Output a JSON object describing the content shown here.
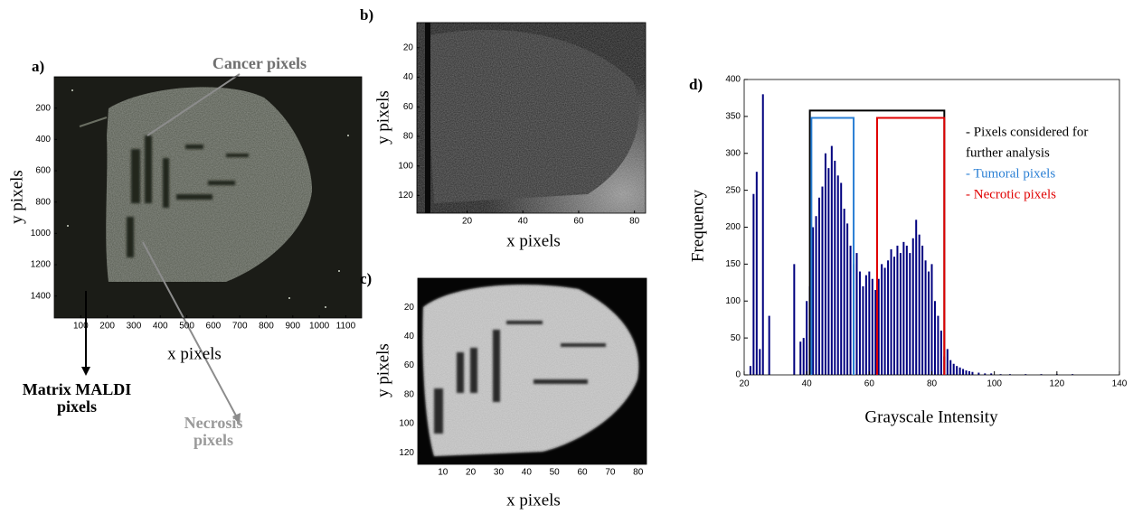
{
  "panel_a": {
    "label": "a)",
    "x_label": "x pixels",
    "y_label": "y pixels",
    "xlim": [
      0,
      1160
    ],
    "ylim": [
      0,
      1540
    ],
    "xticks": [
      100,
      200,
      300,
      400,
      500,
      600,
      700,
      800,
      900,
      1000,
      1100
    ],
    "yticks": [
      200,
      400,
      600,
      800,
      1000,
      1200,
      1400
    ],
    "annotations": {
      "cancer": "Cancer pixels",
      "matrix": [
        "Matrix MALDI",
        "pixels"
      ],
      "necrosis": [
        "Necrosis",
        "pixels"
      ]
    }
  },
  "panel_b": {
    "label": "b)",
    "x_label": "x pixels",
    "y_label": "y pixels",
    "xlim": [
      2,
      84
    ],
    "ylim": [
      3,
      132
    ],
    "xticks": [
      20,
      40,
      60,
      80
    ],
    "yticks": [
      20,
      40,
      60,
      80,
      100,
      120
    ]
  },
  "panel_c": {
    "label": "c)",
    "x_label": "x pixels",
    "y_label": "y pixels",
    "xlim": [
      1,
      83
    ],
    "ylim": [
      0,
      128
    ],
    "xticks": [
      10,
      20,
      30,
      40,
      50,
      60,
      70,
      80
    ],
    "yticks": [
      20,
      40,
      60,
      80,
      100,
      120
    ]
  },
  "chart_data": {
    "type": "bar",
    "label": "d)",
    "x_label": "Grayscale Intensity",
    "y_label": "Frequency",
    "color": "#00007f",
    "x": [
      22,
      23,
      24,
      25,
      26,
      28,
      36,
      38,
      39,
      40,
      41,
      42,
      43,
      44,
      45,
      46,
      47,
      48,
      49,
      50,
      51,
      52,
      53,
      54,
      55,
      56,
      57,
      58,
      59,
      60,
      61,
      62,
      63,
      64,
      65,
      66,
      67,
      68,
      69,
      70,
      71,
      72,
      73,
      74,
      75,
      76,
      77,
      78,
      79,
      80,
      81,
      82,
      83,
      84,
      85,
      86,
      87,
      88,
      89,
      90,
      91,
      92,
      93,
      95,
      97,
      99,
      102,
      105,
      110,
      115,
      120,
      125
    ],
    "values": [
      12,
      245,
      275,
      35,
      380,
      80,
      150,
      45,
      50,
      100,
      120,
      200,
      215,
      240,
      255,
      300,
      280,
      310,
      290,
      270,
      260,
      225,
      205,
      175,
      150,
      165,
      140,
      120,
      135,
      140,
      130,
      115,
      130,
      150,
      145,
      155,
      170,
      160,
      175,
      165,
      180,
      175,
      165,
      185,
      210,
      190,
      175,
      155,
      140,
      150,
      100,
      80,
      60,
      25,
      35,
      20,
      15,
      12,
      10,
      8,
      6,
      5,
      4,
      3,
      2,
      2,
      1,
      1,
      1,
      1,
      1,
      1
    ],
    "xlim": [
      20,
      140
    ],
    "ylim": [
      0,
      400
    ],
    "xticks": [
      20,
      40,
      60,
      80,
      100,
      120,
      140
    ],
    "yticks": [
      0,
      50,
      100,
      150,
      200,
      250,
      300,
      350,
      400
    ],
    "boxes": [
      {
        "name_lines": [
          "- Pixels considered for",
          "further analysis"
        ],
        "color": "#000000",
        "x0": 41,
        "x1": 84,
        "top": 358
      },
      {
        "name_lines": [
          "- Tumoral pixels"
        ],
        "color": "#2a7fd4",
        "x0": 41.5,
        "x1": 55,
        "top": 348
      },
      {
        "name_lines": [
          "- Necrotic pixels"
        ],
        "color": "#e00000",
        "x0": 62.5,
        "x1": 84,
        "top": 348
      }
    ]
  }
}
